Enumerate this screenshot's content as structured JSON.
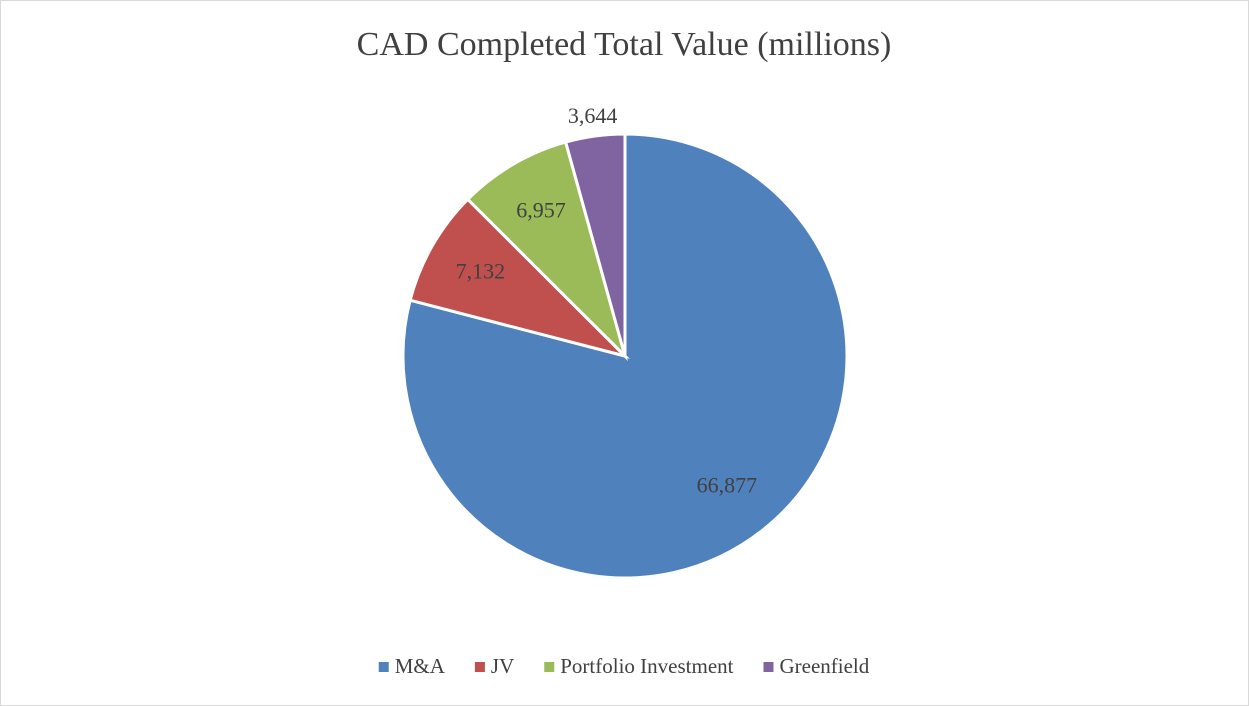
{
  "chart_data": {
    "type": "pie",
    "title": "CAD Completed Total Value (millions)",
    "categories": [
      "M&A",
      "JV",
      "Portfolio Investment",
      "Greenfield"
    ],
    "values": [
      66877,
      7132,
      6957,
      3644
    ],
    "value_labels": [
      "66,877",
      "7,132",
      "6,957",
      "3,644"
    ],
    "colors": [
      "#4f81bd",
      "#c0504d",
      "#9bbb59",
      "#8064a2"
    ],
    "legend": "bottom"
  }
}
